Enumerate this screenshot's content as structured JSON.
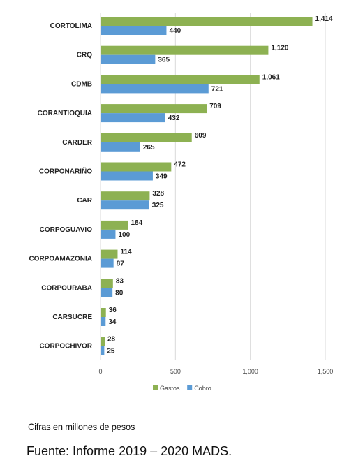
{
  "chart_data": {
    "type": "bar",
    "orientation": "horizontal",
    "title": "",
    "categories": [
      "CORTOLIMA",
      "CRQ",
      "CDMB",
      "CORANTIOQUIA",
      "CARDER",
      "CORPONARIÑO",
      "CAR",
      "CORPOGUAVIO",
      "CORPOAMAZONIA",
      "CORPOURABA",
      "CARSUCRE",
      "CORPOCHIVOR"
    ],
    "series": [
      {
        "name": "Gastos",
        "color": "#8DB152",
        "values": [
          1414,
          1120,
          1061,
          709,
          609,
          472,
          328,
          184,
          114,
          83,
          36,
          28
        ],
        "labels": [
          "1,414",
          "1,120",
          "1,061",
          "709",
          "609",
          "472",
          "328",
          "184",
          "114",
          "83",
          "36",
          "28"
        ]
      },
      {
        "name": "Cobro",
        "color": "#5B9BD5",
        "values": [
          440,
          365,
          721,
          432,
          265,
          349,
          325,
          100,
          87,
          80,
          34,
          25
        ],
        "labels": [
          "440",
          "365",
          "721",
          "432",
          "265",
          "349",
          "325",
          "100",
          "87",
          "80",
          "34",
          "25"
        ]
      }
    ],
    "xlim": [
      0,
      1500
    ],
    "xticks": [
      0,
      500,
      1000,
      1500
    ],
    "xtick_labels": [
      "0",
      "500",
      "1,000",
      "1,500"
    ],
    "grid": true,
    "legend_position": "bottom"
  },
  "footer": {
    "note": "Cifras en millones de pesos",
    "source": "Fuente: Informe 2019 – 2020 MADS."
  }
}
